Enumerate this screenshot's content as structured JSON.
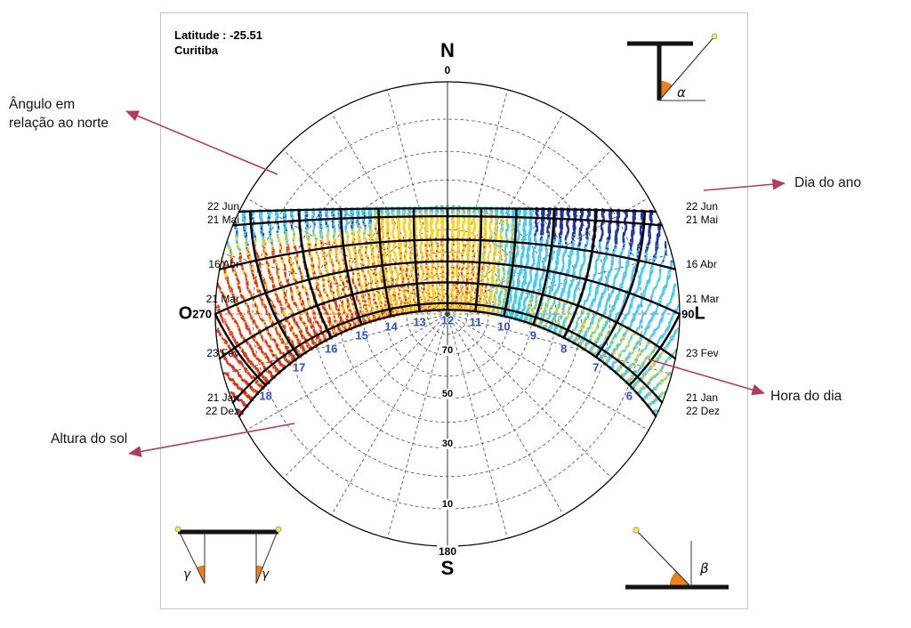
{
  "panel": {
    "header": {
      "latitude": "Latitude : -25.51",
      "city": "Curitiba"
    },
    "compass": {
      "north": "N",
      "south": "S",
      "west": "O",
      "east": "L",
      "azimuth_north": "0",
      "azimuth_south": "180",
      "azimuth_west": "270",
      "azimuth_east": "90"
    },
    "corner_icons": {
      "alpha": "α",
      "beta": "β",
      "gamma_left": "γ",
      "gamma_right": "γ"
    }
  },
  "annotations": [
    {
      "id": "azimuth-angle",
      "text": "Ângulo em relação ao norte"
    },
    {
      "id": "day-of-year",
      "text": "Dia do ano"
    },
    {
      "id": "hour-of-day",
      "text": "Hora do dia"
    },
    {
      "id": "sun-altitude",
      "text": "Altura do sol"
    }
  ],
  "chart_data": {
    "type": "sun-path-stereographic-chart",
    "city": "Curitiba",
    "latitude": -25.51,
    "projection": "stereographic",
    "date_lines": [
      {
        "label": "22 Jun",
        "declination": 23.45
      },
      {
        "label": "21 Mai",
        "declination": 20.15
      },
      {
        "label": "16 Abr",
        "declination": 10.0
      },
      {
        "label": "21 Mar",
        "declination": 0.0
      },
      {
        "label": "23 Fev",
        "declination": -10.0
      },
      {
        "label": "21 Jan",
        "declination": -20.15
      },
      {
        "label": "22 Dez",
        "declination": -23.45
      }
    ],
    "hour_lines": [
      6,
      7,
      8,
      9,
      10,
      11,
      12,
      13,
      14,
      15,
      16,
      17,
      18
    ],
    "hour_label_color": "#2d4fc8",
    "altitude_circles": [
      10,
      20,
      30,
      40,
      50,
      60,
      70,
      80
    ],
    "altitude_labels": [
      10,
      30,
      50,
      70
    ],
    "azimuth_labels": {
      "north": "0",
      "south": "180",
      "west": "270",
      "east": "90"
    },
    "azimuth_step_deg": 15,
    "dot_colors": {
      "cold": "#22379b",
      "cool": "#45cbf2",
      "warm": "#ffd22b",
      "hot": "#dd2f1e"
    }
  }
}
